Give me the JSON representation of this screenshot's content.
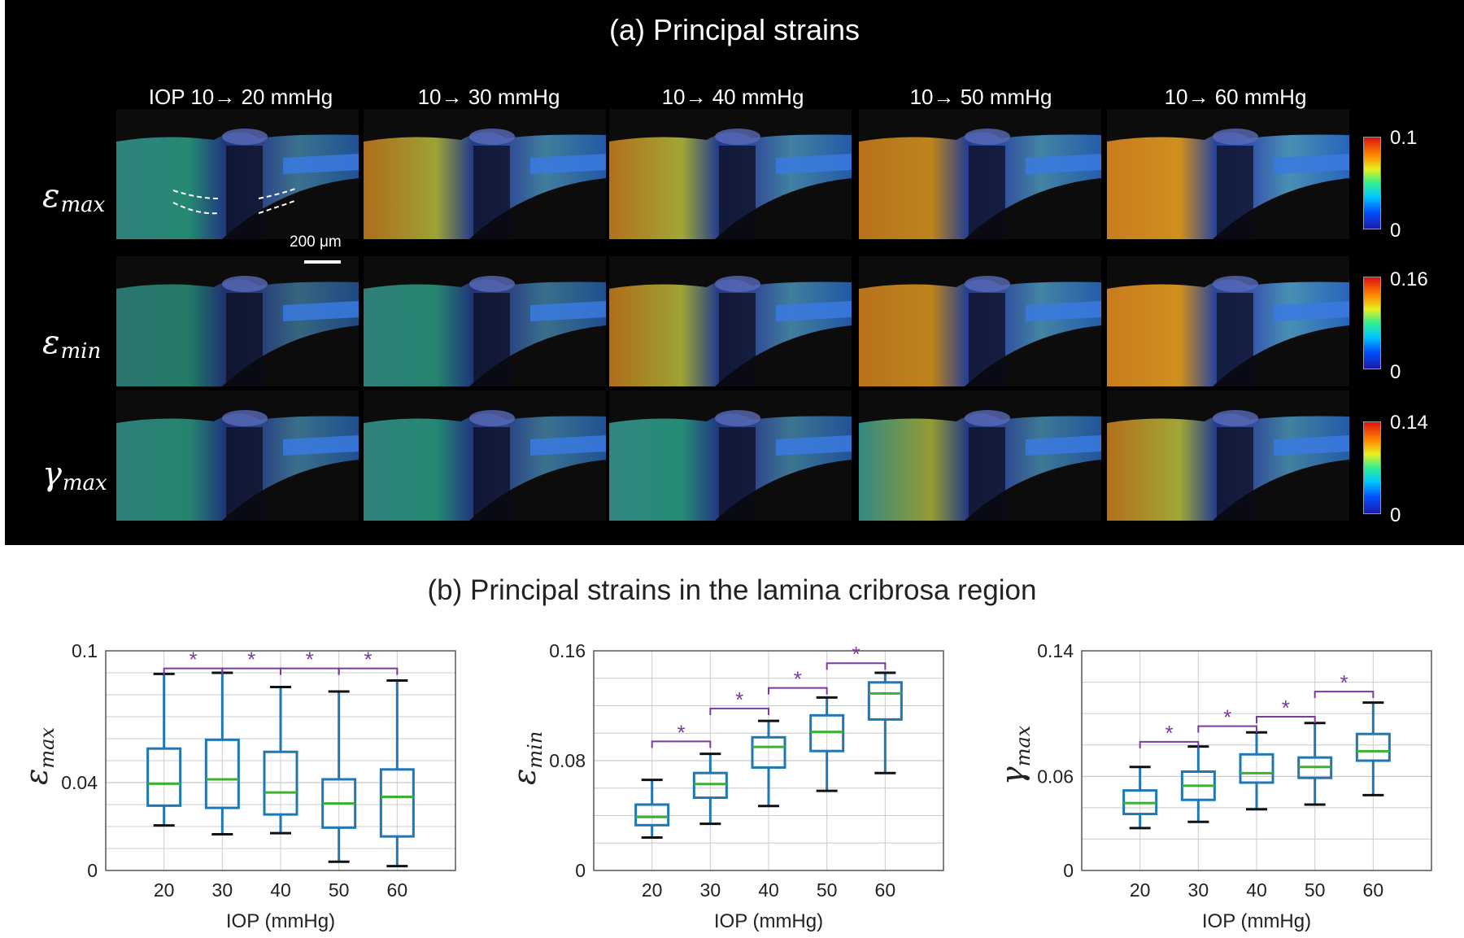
{
  "panel_a": {
    "title": "(a) Principal strains",
    "columns": [
      "IOP 10→ 20 mmHg",
      "10→ 30 mmHg",
      "10→ 40 mmHg",
      "10→ 50 mmHg",
      "10→ 60 mmHg"
    ],
    "rows": [
      {
        "symbol": "ε",
        "sub": "max",
        "cbar_max": "0.1",
        "cbar_min": "0",
        "name": "emax"
      },
      {
        "symbol": "ε",
        "sub": "min",
        "cbar_max": "0.16",
        "cbar_min": "0",
        "name": "emin"
      },
      {
        "symbol": "γ",
        "sub": "max",
        "cbar_max": "0.14",
        "cbar_min": "0",
        "name": "gmax"
      }
    ],
    "scalebar_label": "200 μm",
    "intensity": [
      [
        0.35,
        0.55,
        0.6,
        0.65,
        0.85
      ],
      [
        0.15,
        0.3,
        0.55,
        0.65,
        0.85
      ],
      [
        0.3,
        0.35,
        0.4,
        0.45,
        0.6
      ]
    ]
  },
  "panel_b": {
    "title": "(b) Principal strains in the lamina cribrosa region"
  },
  "colors": {
    "box": "#1f77b4",
    "median": "#3cb030",
    "sig": "#7a3aa0",
    "grid": "#cccccc"
  },
  "chart_data": [
    {
      "type": "box",
      "name": "chart-emax",
      "ylabel_symbol": "ε",
      "ylabel_sub": "max",
      "xlabel": "IOP (mmHg)",
      "categories": [
        "20",
        "30",
        "40",
        "50",
        "60"
      ],
      "ylim": [
        0,
        0.1
      ],
      "yticks": [
        "0",
        "0.04",
        "0.1"
      ],
      "ytick_values": [
        0,
        0.04,
        0.1
      ],
      "minor_grid": [
        0.01,
        0.02,
        0.03,
        0.05,
        0.06,
        0.07,
        0.08,
        0.09
      ],
      "boxes": [
        {
          "min": 0.0205,
          "q1": 0.0295,
          "median": 0.0395,
          "q3": 0.0555,
          "max": 0.0895
        },
        {
          "min": 0.0165,
          "q1": 0.0285,
          "median": 0.0415,
          "q3": 0.0595,
          "max": 0.09
        },
        {
          "min": 0.017,
          "q1": 0.0255,
          "median": 0.0355,
          "q3": 0.054,
          "max": 0.0835
        },
        {
          "min": 0.004,
          "q1": 0.0195,
          "median": 0.0305,
          "q3": 0.0415,
          "max": 0.0815
        },
        {
          "min": 0.002,
          "q1": 0.0155,
          "median": 0.0335,
          "q3": 0.046,
          "max": 0.0865
        }
      ],
      "significance": [
        {
          "from": 0,
          "to": 1,
          "y": 0.092,
          "label": "*"
        },
        {
          "from": 1,
          "to": 2,
          "y": 0.092,
          "label": "*"
        },
        {
          "from": 2,
          "to": 3,
          "y": 0.092,
          "label": "*"
        },
        {
          "from": 3,
          "to": 4,
          "y": 0.092,
          "label": "*"
        }
      ]
    },
    {
      "type": "box",
      "name": "chart-emin",
      "ylabel_symbol": "ε",
      "ylabel_sub": "min",
      "xlabel": "IOP (mmHg)",
      "categories": [
        "20",
        "30",
        "40",
        "50",
        "60"
      ],
      "ylim": [
        0,
        0.16
      ],
      "yticks": [
        "0",
        "0.08",
        "0.16"
      ],
      "ytick_values": [
        0,
        0.08,
        0.16
      ],
      "minor_grid": [
        0.02,
        0.04,
        0.06,
        0.1,
        0.12,
        0.14
      ],
      "boxes": [
        {
          "min": 0.024,
          "q1": 0.033,
          "median": 0.039,
          "q3": 0.048,
          "max": 0.066
        },
        {
          "min": 0.034,
          "q1": 0.053,
          "median": 0.063,
          "q3": 0.071,
          "max": 0.085
        },
        {
          "min": 0.047,
          "q1": 0.075,
          "median": 0.09,
          "q3": 0.097,
          "max": 0.109
        },
        {
          "min": 0.058,
          "q1": 0.087,
          "median": 0.101,
          "q3": 0.113,
          "max": 0.126
        },
        {
          "min": 0.071,
          "q1": 0.11,
          "median": 0.129,
          "q3": 0.137,
          "max": 0.144
        }
      ],
      "significance": [
        {
          "from": 0,
          "to": 1,
          "y": 0.094,
          "label": "*"
        },
        {
          "from": 1,
          "to": 2,
          "y": 0.118,
          "label": "*"
        },
        {
          "from": 2,
          "to": 3,
          "y": 0.133,
          "label": "*"
        },
        {
          "from": 3,
          "to": 4,
          "y": 0.151,
          "label": "*"
        }
      ]
    },
    {
      "type": "box",
      "name": "chart-gmax",
      "ylabel_symbol": "γ",
      "ylabel_sub": "max",
      "xlabel": "IOP (mmHg)",
      "categories": [
        "20",
        "30",
        "40",
        "50",
        "60"
      ],
      "ylim": [
        0,
        0.14
      ],
      "yticks": [
        "0",
        "0.06",
        "0.14"
      ],
      "ytick_values": [
        0,
        0.06,
        0.14
      ],
      "minor_grid": [
        0.02,
        0.04,
        0.08,
        0.1,
        0.12
      ],
      "boxes": [
        {
          "min": 0.027,
          "q1": 0.036,
          "median": 0.043,
          "q3": 0.051,
          "max": 0.066
        },
        {
          "min": 0.031,
          "q1": 0.045,
          "median": 0.054,
          "q3": 0.063,
          "max": 0.079
        },
        {
          "min": 0.039,
          "q1": 0.056,
          "median": 0.062,
          "q3": 0.074,
          "max": 0.088
        },
        {
          "min": 0.042,
          "q1": 0.059,
          "median": 0.066,
          "q3": 0.072,
          "max": 0.094
        },
        {
          "min": 0.048,
          "q1": 0.07,
          "median": 0.076,
          "q3": 0.087,
          "max": 0.107
        }
      ],
      "significance": [
        {
          "from": 0,
          "to": 1,
          "y": 0.082,
          "label": "*"
        },
        {
          "from": 1,
          "to": 2,
          "y": 0.092,
          "label": "*"
        },
        {
          "from": 2,
          "to": 3,
          "y": 0.098,
          "label": "*"
        },
        {
          "from": 3,
          "to": 4,
          "y": 0.114,
          "label": "*"
        }
      ]
    }
  ]
}
